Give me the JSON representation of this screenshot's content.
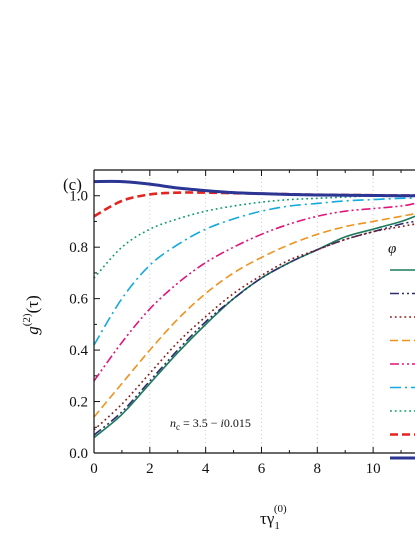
{
  "chart_data": {
    "type": "line",
    "panel_label": "(c)",
    "xlabel_main": "τγ",
    "xlabel_sub": "1",
    "xlabel_sup": "(0)",
    "ylabel_main": "g",
    "ylabel_sup": "(2)",
    "ylabel_tail": "(τ)",
    "annotation": "n_c = 3.5 − i0.015",
    "annotation_parts": {
      "n": "n",
      "sub": "c",
      "mid": " = 3.5 − ",
      "i": "i",
      "tail": "0.015"
    },
    "legend_header": "φ",
    "xlim": [
      0,
      11.5
    ],
    "ylim": [
      0.0,
      1.1
    ],
    "xticks": [
      "0",
      "2",
      "4",
      "6",
      "8",
      "10"
    ],
    "yticks": [
      "0.0",
      "0.2",
      "0.4",
      "0.6",
      "0.8",
      "1.0"
    ],
    "grid": "vertical dotted at x ticks",
    "x": [
      0,
      1,
      2,
      3,
      4,
      5,
      6,
      7,
      8,
      9,
      10,
      11,
      11.5
    ],
    "series": [
      {
        "style": "solid",
        "color": "#1a7a5a",
        "values": [
          0.06,
          0.15,
          0.27,
          0.39,
          0.5,
          0.6,
          0.68,
          0.74,
          0.79,
          0.84,
          0.87,
          0.9,
          0.92
        ]
      },
      {
        "style": "dashdotdot",
        "color": "#2c2c6e",
        "values": [
          0.07,
          0.16,
          0.28,
          0.4,
          0.51,
          0.6,
          0.68,
          0.74,
          0.79,
          0.83,
          0.86,
          0.89,
          0.9
        ]
      },
      {
        "style": "dot",
        "color": "#8b1a1a",
        "values": [
          0.09,
          0.19,
          0.31,
          0.43,
          0.53,
          0.62,
          0.69,
          0.75,
          0.79,
          0.83,
          0.86,
          0.88,
          0.89
        ]
      },
      {
        "style": "dash",
        "color": "#f0921e",
        "values": [
          0.14,
          0.27,
          0.4,
          0.52,
          0.62,
          0.7,
          0.76,
          0.81,
          0.85,
          0.88,
          0.9,
          0.92,
          0.93
        ]
      },
      {
        "style": "dashdotdot",
        "color": "#e0157a",
        "values": [
          0.28,
          0.43,
          0.56,
          0.66,
          0.74,
          0.8,
          0.85,
          0.89,
          0.92,
          0.94,
          0.95,
          0.96,
          0.97
        ]
      },
      {
        "style": "dashdot",
        "color": "#12a9de",
        "values": [
          0.42,
          0.6,
          0.73,
          0.81,
          0.87,
          0.91,
          0.94,
          0.96,
          0.97,
          0.98,
          0.985,
          0.99,
          0.99
        ]
      },
      {
        "style": "dot",
        "color": "#0e9a6e",
        "values": [
          0.68,
          0.8,
          0.87,
          0.91,
          0.94,
          0.96,
          0.975,
          0.985,
          0.99,
          0.995,
          1.0,
          1.0,
          1.0
        ]
      },
      {
        "style": "dash",
        "color": "#e52420",
        "values": [
          0.92,
          0.98,
          1.005,
          1.012,
          1.012,
          1.01,
          1.008,
          1.006,
          1.004,
          1.003,
          1.002,
          1.001,
          1.001
        ]
      },
      {
        "style": "solid",
        "color": "#2b3593",
        "values": [
          1.055,
          1.055,
          1.045,
          1.03,
          1.02,
          1.012,
          1.008,
          1.005,
          1.003,
          1.002,
          1.001,
          1.0,
          1.0
        ]
      }
    ]
  }
}
